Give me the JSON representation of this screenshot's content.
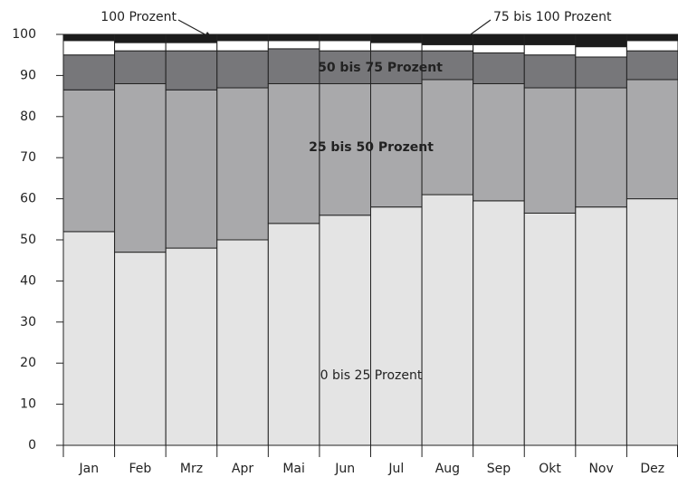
{
  "chart_data": {
    "type": "stacked-bar",
    "categories": [
      "Jan",
      "Feb",
      "Mrz",
      "Apr",
      "Mai",
      "Jun",
      "Jul",
      "Aug",
      "Sep",
      "Okt",
      "Nov",
      "Dez"
    ],
    "series": [
      {
        "name": "0 bis 25 Prozent",
        "color": "#e4e4e4",
        "values": [
          52,
          47,
          48,
          50,
          54,
          56,
          58,
          61,
          59.5,
          56.5,
          58,
          60
        ]
      },
      {
        "name": "25 bis 50 Prozent",
        "color": "#a9a9ab",
        "values": [
          34.5,
          41,
          38.5,
          37,
          34,
          32,
          30,
          28,
          28.5,
          30.5,
          29,
          29
        ]
      },
      {
        "name": "50 bis 75 Prozent",
        "color": "#77777a",
        "values": [
          8.5,
          8,
          9.5,
          9,
          8.5,
          8,
          8,
          7,
          7.5,
          8,
          7.5,
          7
        ]
      },
      {
        "name": "75 bis 100 Prozent",
        "color": "#ffffff",
        "values": [
          3.5,
          2,
          2,
          2.5,
          2,
          2.5,
          2,
          1.5,
          2,
          2.5,
          2.5,
          2.5
        ]
      },
      {
        "name": "100 Prozent",
        "color": "#1c1c1c",
        "values": [
          1.5,
          2,
          2,
          1.5,
          1.5,
          1.5,
          2,
          2.5,
          2.5,
          2.5,
          3,
          1.5
        ]
      }
    ],
    "ylim": [
      0,
      100
    ],
    "yticks": [
      0,
      10,
      20,
      30,
      40,
      50,
      60,
      70,
      80,
      90,
      100
    ],
    "grid": false
  }
}
